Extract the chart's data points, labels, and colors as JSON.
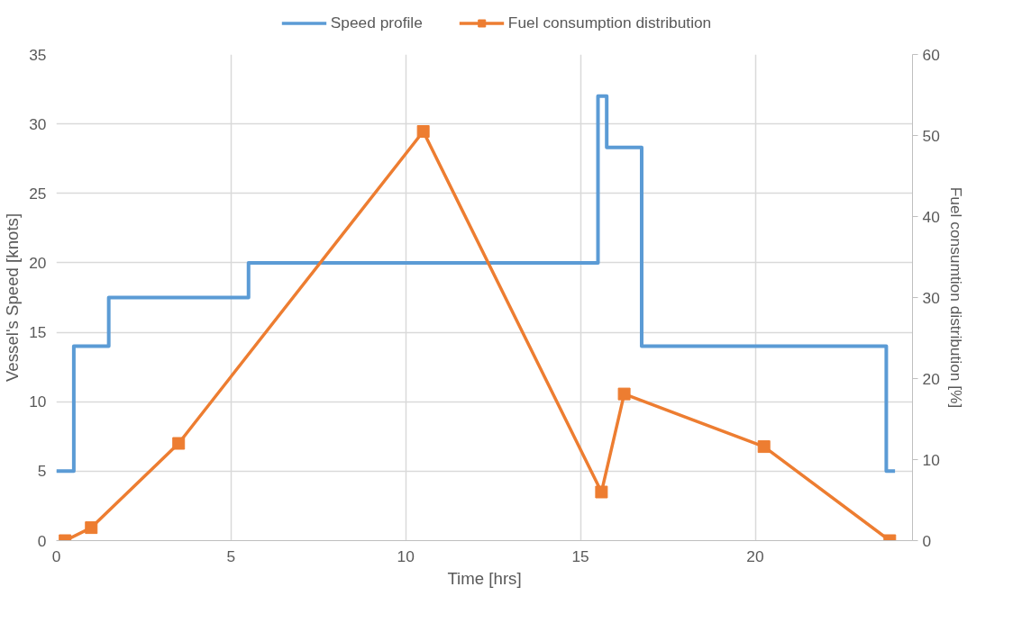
{
  "chart_data": {
    "type": "line",
    "xlabel": "Time [hrs]",
    "ylabel": "Vessel's Speed [knots]",
    "y2label": "Fuel consumtion distribution [%]",
    "xlim": [
      0,
      24.5
    ],
    "xticks": [
      0,
      5,
      10,
      15,
      20
    ],
    "ylim": [
      0,
      35
    ],
    "yticks": [
      0,
      5,
      10,
      15,
      20,
      25,
      30,
      35
    ],
    "y2lim": [
      0,
      60
    ],
    "y2ticks": [
      0,
      10,
      20,
      30,
      40,
      50,
      60
    ],
    "grid": true,
    "legend": "top",
    "series": [
      {
        "name": "Speed profile",
        "type": "step",
        "color": "#5b9bd5",
        "marker": "none",
        "x": [
          0,
          0.5,
          1.5,
          5.5,
          15.5,
          15.75,
          16.75,
          23.75,
          24
        ],
        "values": [
          5,
          14,
          17.5,
          20,
          32,
          28.3,
          14,
          5,
          5
        ]
      },
      {
        "name": "Fuel consumption distribution",
        "axis": "y2",
        "color": "#ed7d31",
        "marker": "square",
        "x": [
          0.25,
          1.0,
          3.5,
          10.5,
          15.6,
          16.25,
          20.25,
          23.85
        ],
        "values": [
          0,
          1.6,
          12.0,
          50.5,
          6.0,
          18.1,
          11.6,
          0
        ]
      }
    ]
  }
}
